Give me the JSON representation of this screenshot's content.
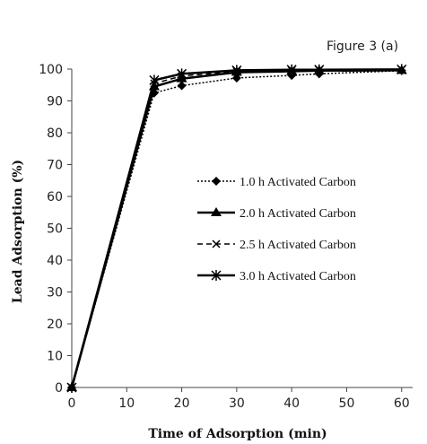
{
  "figure_label": "Figure 3 (a)",
  "chart_data": {
    "type": "line",
    "title": "",
    "xlabel": "Time of Adsorption (min)",
    "ylabel": "Lead Adsorption (%)",
    "xlim": [
      0,
      62
    ],
    "ylim": [
      0,
      100
    ],
    "x_ticks": [
      0,
      10,
      20,
      30,
      40,
      50,
      60
    ],
    "y_ticks": [
      0,
      10,
      20,
      30,
      40,
      50,
      60,
      70,
      80,
      90,
      100
    ],
    "grid": false,
    "legend_position": "center-right",
    "series": [
      {
        "name": "1.0 h Activated Carbon",
        "line_style": "dotted",
        "marker": "diamond",
        "x": [
          0,
          15,
          20,
          30,
          40,
          45,
          60
        ],
        "y": [
          0,
          92.5,
          94.8,
          97.2,
          98.0,
          98.5,
          99.5
        ]
      },
      {
        "name": "2.0 h Activated Carbon",
        "line_style": "solid",
        "marker": "triangle",
        "x": [
          0,
          15,
          20,
          30,
          40,
          45,
          60
        ],
        "y": [
          0,
          94.5,
          97.0,
          99.0,
          99.3,
          99.5,
          99.6
        ]
      },
      {
        "name": "2.5 h Activated Carbon",
        "line_style": "dashed",
        "marker": "x",
        "x": [
          0,
          15,
          20,
          30,
          40,
          45,
          60
        ],
        "y": [
          0,
          95.5,
          97.8,
          99.3,
          99.6,
          99.7,
          99.8
        ]
      },
      {
        "name": "3.0 h Activated Carbon",
        "line_style": "solid",
        "marker": "asterisk",
        "x": [
          0,
          15,
          20,
          30,
          40,
          45,
          60
        ],
        "y": [
          0,
          96.5,
          98.5,
          99.6,
          99.8,
          99.8,
          99.9
        ]
      }
    ],
    "colors": {
      "line": "#000000",
      "axis": "#444444"
    }
  }
}
